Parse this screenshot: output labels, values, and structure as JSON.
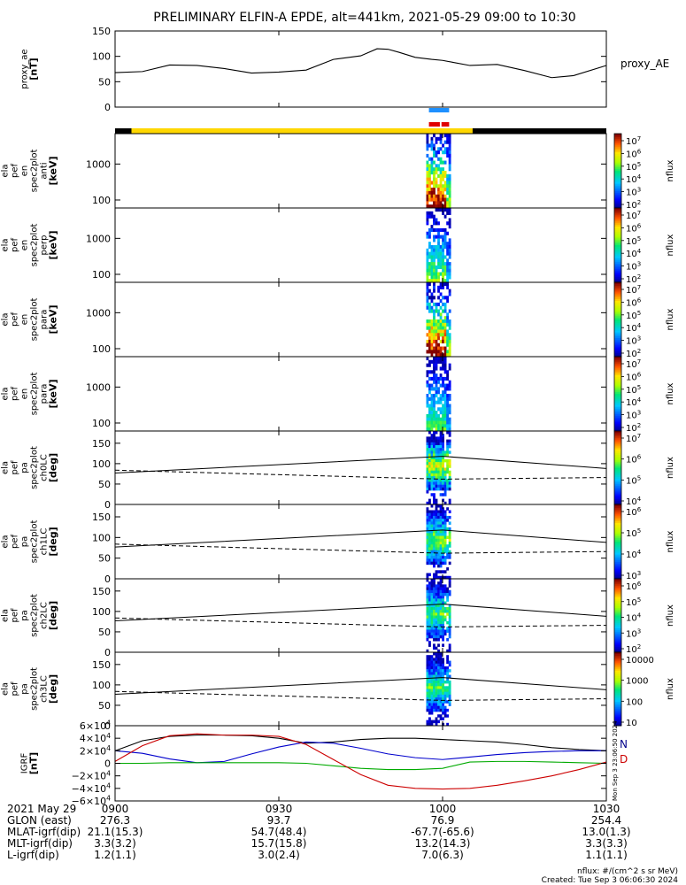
{
  "title": "PRELIMINARY ELFIN-A EPDE, alt=441km, 2021-05-29 09:00 to 10:30",
  "chart_data": [
    {
      "type": "line",
      "id": "proxy_ae",
      "ylabel_lines": [
        "proxy_ae",
        "[nT]"
      ],
      "legend": "proxy_AE",
      "ylim": [
        0,
        150
      ],
      "yticks": [
        "150",
        "100",
        "50",
        "0"
      ],
      "x_minutes": [
        0,
        5,
        10,
        15,
        20,
        25,
        30,
        35,
        40,
        45,
        48,
        50,
        52,
        55,
        58,
        60,
        62,
        65,
        70,
        75,
        80,
        84,
        90
      ],
      "values": [
        68,
        70,
        83,
        82,
        76,
        67,
        69,
        73,
        94,
        101,
        115,
        114,
        108,
        98,
        94,
        92,
        88,
        82,
        84,
        72,
        58,
        62,
        82
      ]
    },
    {
      "type": "heatmap",
      "id": "en_spec_anti",
      "ylabel_lines": [
        "ela",
        "pef",
        "en",
        "spec2plot",
        "anti",
        "[keV]"
      ],
      "ylim_log": [
        60,
        7000
      ],
      "yticks": [
        "1000",
        "100"
      ],
      "cbar_label": "nflux",
      "cbar_ticks": [
        "10^7",
        "10^6",
        "10^5",
        "10^4",
        "10^3",
        "10^2"
      ],
      "strength": 1.0
    },
    {
      "type": "heatmap",
      "id": "en_spec_perp",
      "ylabel_lines": [
        "ela",
        "pef",
        "en",
        "spec2plot",
        "perp",
        "[keV]"
      ],
      "ylim_log": [
        60,
        7000
      ],
      "yticks": [
        "1000",
        "100"
      ],
      "cbar_label": "nflux",
      "cbar_ticks": [
        "10^7",
        "10^6",
        "10^5",
        "10^4",
        "10^3",
        "10^2"
      ],
      "strength": 0.55
    },
    {
      "type": "heatmap",
      "id": "en_spec_para",
      "ylabel_lines": [
        "ela",
        "pef",
        "en",
        "spec2plot",
        "para",
        "[keV]"
      ],
      "ylim_log": [
        60,
        7000
      ],
      "yticks": [
        "1000",
        "100"
      ],
      "cbar_label": "nflux",
      "cbar_ticks": [
        "10^7",
        "10^6",
        "10^5",
        "10^4",
        "10^3",
        "10^2"
      ],
      "strength": 1.0
    },
    {
      "type": "heatmap",
      "id": "en_spec_para2",
      "ylabel_lines": [
        "ela",
        "pef",
        "en",
        "spec2plot",
        "para",
        "[keV]"
      ],
      "ylim_log": [
        60,
        7000
      ],
      "yticks": [
        "1000",
        "100"
      ],
      "cbar_label": "nflux",
      "cbar_ticks": [
        "10^7",
        "10^6",
        "10^5",
        "10^4",
        "10^3",
        "10^2"
      ],
      "strength": 0.5
    },
    {
      "type": "heatmap",
      "id": "pa_ch0",
      "ylabel_lines": [
        "ela",
        "pef",
        "pa",
        "spec2plot",
        "ch0LC",
        "[deg]"
      ],
      "ylim": [
        0,
        180
      ],
      "yticks": [
        "150",
        "100",
        "50",
        "0"
      ],
      "cbar_label": "nflux",
      "cbar_ticks": [
        "10^7",
        "10^6",
        "10^5",
        "10^4"
      ],
      "strength": 0.95,
      "lc_solid": [
        77,
        118,
        88
      ],
      "lc_dashed": [
        84,
        62,
        66
      ]
    },
    {
      "type": "heatmap",
      "id": "pa_ch1",
      "ylabel_lines": [
        "ela",
        "pef",
        "pa",
        "spec2plot",
        "ch1LC",
        "[deg]"
      ],
      "ylim": [
        0,
        180
      ],
      "yticks": [
        "150",
        "100",
        "50",
        "0"
      ],
      "cbar_label": "nflux",
      "cbar_ticks": [
        "10^6",
        "10^5",
        "10^4",
        "10^3"
      ],
      "strength": 0.8,
      "lc_solid": [
        77,
        118,
        88
      ],
      "lc_dashed": [
        84,
        62,
        66
      ]
    },
    {
      "type": "heatmap",
      "id": "pa_ch2",
      "ylabel_lines": [
        "ela",
        "pef",
        "pa",
        "spec2plot",
        "ch2LC",
        "[deg]"
      ],
      "ylim": [
        0,
        180
      ],
      "yticks": [
        "150",
        "100",
        "50",
        "0"
      ],
      "cbar_label": "nflux",
      "cbar_ticks": [
        "10^6",
        "10^5",
        "10^4",
        "10^3",
        "10^2"
      ],
      "strength": 0.75,
      "lc_solid": [
        77,
        118,
        88
      ],
      "lc_dashed": [
        84,
        62,
        66
      ]
    },
    {
      "type": "heatmap",
      "id": "pa_ch3",
      "ylabel_lines": [
        "ela",
        "pef",
        "pa",
        "spec2plot",
        "ch3LC",
        "[deg]"
      ],
      "ylim": [
        0,
        180
      ],
      "yticks": [
        "150",
        "100",
        "50",
        "0"
      ],
      "cbar_label": "nflux",
      "cbar_ticks": [
        "10000",
        "1000",
        "100",
        "10"
      ],
      "strength": 0.7,
      "lc_solid": [
        77,
        118,
        88
      ],
      "lc_dashed": [
        84,
        62,
        66
      ]
    },
    {
      "type": "line",
      "id": "igrf",
      "ylabel_lines": [
        "IGRF",
        "[nT]"
      ],
      "ylim": [
        -60000,
        60000
      ],
      "yticks": [
        "6×10^4",
        "4×10^4",
        "2×10^4",
        "0",
        "−2×10^4",
        "−4×10^4",
        "−6×10^4"
      ],
      "legend": [
        "N",
        "D"
      ],
      "x_minutes": [
        0,
        5,
        10,
        15,
        20,
        25,
        30,
        35,
        40,
        45,
        50,
        55,
        60,
        65,
        70,
        75,
        80,
        85,
        90
      ],
      "series": [
        {
          "color": "#000000",
          "values": [
            20000,
            36000,
            43000,
            45000,
            45000,
            44000,
            40000,
            32000,
            34000,
            38000,
            40000,
            40000,
            38000,
            36000,
            34000,
            30000,
            25000,
            22000,
            20000
          ]
        },
        {
          "color": "#0000cc",
          "values": [
            20000,
            16000,
            7000,
            1000,
            3000,
            15000,
            26000,
            34000,
            32000,
            24000,
            15000,
            9000,
            6000,
            10000,
            14000,
            17000,
            19000,
            20000,
            20000
          ]
        },
        {
          "color": "#00aa00",
          "values": [
            0,
            0,
            1000,
            1000,
            1000,
            1000,
            1000,
            0,
            -4000,
            -8000,
            -10000,
            -10000,
            -8000,
            2000,
            3000,
            3000,
            2000,
            1000,
            0
          ]
        },
        {
          "color": "#cc0000",
          "values": [
            3000,
            28000,
            44000,
            47000,
            45000,
            45000,
            43000,
            30000,
            6000,
            -18000,
            -35000,
            -40000,
            -41000,
            -40000,
            -35000,
            -28000,
            -20000,
            -10000,
            2000
          ]
        }
      ]
    }
  ],
  "time_axis": {
    "start_min": 0,
    "end_min": 90,
    "ticks": [
      {
        "min": 0,
        "label": "0900"
      },
      {
        "min": 30,
        "label": "0930"
      },
      {
        "min": 60,
        "label": "1000"
      },
      {
        "min": 90,
        "label": "1030"
      }
    ]
  },
  "orbit_bar": {
    "yellow_from_min": 3,
    "yellow_to_min": 65.5
  },
  "indicators": {
    "blue_from_min": 57.5,
    "blue_to_min": 61.2,
    "red_segments": [
      [
        57.5,
        59.5
      ],
      [
        59.8,
        61.2
      ]
    ]
  },
  "data_window_min": [
    57.0,
    61.5
  ],
  "side_stamp": "Mon Sep  3 23:06:50 2024",
  "ephemeris": {
    "date_label": "2021 May 29",
    "rows": [
      {
        "label": "GLON (east)",
        "values": [
          "276.3",
          "93.7",
          "76.9",
          "254.4"
        ]
      },
      {
        "label": "MLAT-igrf(dip)",
        "values": [
          "21.1(15.3)",
          "54.7(48.4)",
          "-67.7(-65.6)",
          "13.0(1.3)"
        ]
      },
      {
        "label": "MLT-igrf(dip)",
        "values": [
          "3.3(3.2)",
          "15.7(15.8)",
          "13.2(14.3)",
          "3.3(3.3)"
        ]
      },
      {
        "label": "L-igrf(dip)",
        "values": [
          "1.2(1.1)",
          "3.0(2.4)",
          "7.0(6.3)",
          "1.1(1.1)"
        ]
      }
    ]
  },
  "footer": {
    "units": "nflux: #/(cm^2 s sr MeV)",
    "created": "Created: Tue Sep  3 06:06:30 2024"
  }
}
